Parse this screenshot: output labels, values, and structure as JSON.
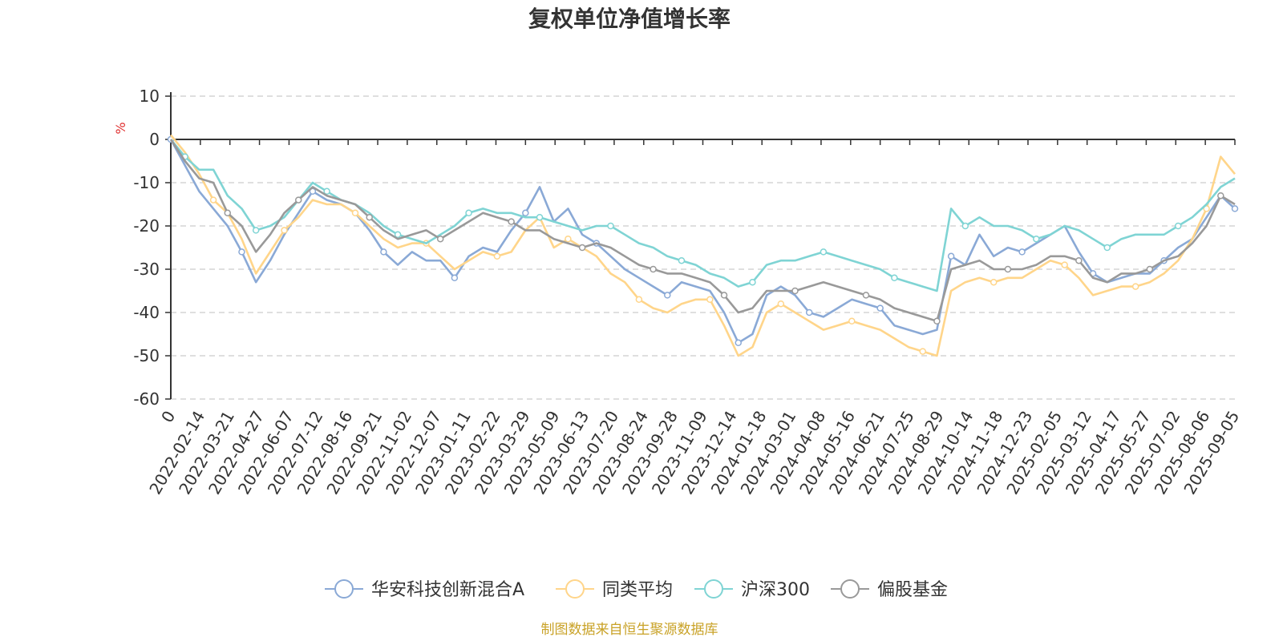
{
  "source_note": "制图数据来自恒生聚源数据库",
  "chart_data": {
    "type": "line",
    "title": "复权单位净值增长率",
    "ylabel": "%",
    "ylim": [
      -60,
      10
    ],
    "yticks": [
      10,
      0,
      -10,
      -20,
      -30,
      -40,
      -50,
      -60
    ],
    "grid": true,
    "legend_position": "bottom",
    "x_tick_labels": [
      "0",
      "2022-02-14",
      "2022-03-21",
      "2022-04-27",
      "2022-06-07",
      "2022-07-12",
      "2022-08-16",
      "2022-09-21",
      "2022-11-02",
      "2022-12-07",
      "2023-01-11",
      "2023-02-22",
      "2023-03-29",
      "2023-05-09",
      "2023-06-13",
      "2023-07-20",
      "2023-08-24",
      "2023-09-28",
      "2023-11-09",
      "2023-12-14",
      "2024-01-18",
      "2024-03-01",
      "2024-04-08",
      "2024-05-16",
      "2024-06-21",
      "2024-07-25",
      "2024-08-29",
      "2024-10-14",
      "2024-11-18",
      "2024-12-23",
      "2025-02-05",
      "2025-03-12",
      "2025-04-17",
      "2025-05-27",
      "2025-07-02",
      "2025-08-06",
      "2025-09-05"
    ],
    "x": [
      "0",
      "2022-01-20",
      "2022-02-14",
      "2022-03-01",
      "2022-03-21",
      "2022-04-08",
      "2022-04-27",
      "2022-05-16",
      "2022-06-07",
      "2022-06-22",
      "2022-07-12",
      "2022-07-26",
      "2022-08-16",
      "2022-09-01",
      "2022-09-21",
      "2022-10-14",
      "2022-11-02",
      "2022-11-18",
      "2022-12-07",
      "2022-12-22",
      "2023-01-11",
      "2023-02-01",
      "2023-02-22",
      "2023-03-10",
      "2023-03-29",
      "2023-04-18",
      "2023-05-09",
      "2023-05-25",
      "2023-06-13",
      "2023-07-03",
      "2023-07-20",
      "2023-08-07",
      "2023-08-24",
      "2023-09-11",
      "2023-09-28",
      "2023-10-20",
      "2023-11-09",
      "2023-11-27",
      "2023-12-14",
      "2023-12-29",
      "2024-01-18",
      "2024-02-06",
      "2024-03-01",
      "2024-03-19",
      "2024-04-08",
      "2024-04-26",
      "2024-05-16",
      "2024-06-04",
      "2024-06-21",
      "2024-07-09",
      "2024-07-25",
      "2024-08-12",
      "2024-08-29",
      "2024-09-20",
      "2024-09-30",
      "2024-10-14",
      "2024-10-31",
      "2024-11-18",
      "2024-12-05",
      "2024-12-23",
      "2025-01-13",
      "2025-02-05",
      "2025-02-21",
      "2025-03-12",
      "2025-03-31",
      "2025-04-07",
      "2025-04-17",
      "2025-05-09",
      "2025-05-27",
      "2025-06-16",
      "2025-07-02",
      "2025-07-18",
      "2025-08-06",
      "2025-08-22",
      "2025-08-28",
      "2025-09-05"
    ],
    "series": [
      {
        "name": "华安科技创新混合A",
        "color": "#8aa9d6",
        "values": [
          0,
          -6,
          -12,
          -16,
          -20,
          -26,
          -33,
          -28,
          -22,
          -17,
          -12,
          -14,
          -15,
          -17,
          -21,
          -26,
          -29,
          -26,
          -28,
          -28,
          -32,
          -27,
          -25,
          -26,
          -21,
          -17,
          -11,
          -19,
          -16,
          -22,
          -24,
          -27,
          -30,
          -32,
          -34,
          -36,
          -33,
          -34,
          -35,
          -40,
          -47,
          -45,
          -36,
          -34,
          -36,
          -40,
          -41,
          -39,
          -37,
          -38,
          -39,
          -43,
          -44,
          -45,
          -44,
          -27,
          -29,
          -22,
          -27,
          -25,
          -26,
          -24,
          -22,
          -20,
          -26,
          -31,
          -33,
          -32,
          -31,
          -31,
          -28,
          -25,
          -23,
          -18,
          -13,
          -16
        ]
      },
      {
        "name": "同类平均",
        "color": "#ffd58a",
        "values": [
          1,
          -3,
          -8,
          -14,
          -17,
          -23,
          -31,
          -26,
          -21,
          -18,
          -14,
          -15,
          -15,
          -17,
          -20,
          -23,
          -25,
          -24,
          -24,
          -27,
          -30,
          -28,
          -26,
          -27,
          -26,
          -21,
          -18,
          -25,
          -23,
          -25,
          -27,
          -31,
          -33,
          -37,
          -39,
          -40,
          -38,
          -37,
          -37,
          -43,
          -50,
          -48,
          -40,
          -38,
          -40,
          -42,
          -44,
          -43,
          -42,
          -43,
          -44,
          -46,
          -48,
          -49,
          -50,
          -35,
          -33,
          -32,
          -33,
          -32,
          -32,
          -30,
          -28,
          -29,
          -32,
          -36,
          -35,
          -34,
          -34,
          -33,
          -31,
          -28,
          -23,
          -16,
          -4,
          -8
        ]
      },
      {
        "name": "沪深300",
        "color": "#7fd4d4",
        "values": [
          0,
          -4,
          -7,
          -7,
          -13,
          -16,
          -21,
          -20,
          -18,
          -14,
          -10,
          -12,
          -14,
          -15,
          -17,
          -20,
          -22,
          -23,
          -24,
          -22,
          -20,
          -17,
          -16,
          -17,
          -17,
          -18,
          -18,
          -19,
          -20,
          -21,
          -20,
          -20,
          -22,
          -24,
          -25,
          -27,
          -28,
          -29,
          -31,
          -32,
          -34,
          -33,
          -29,
          -28,
          -28,
          -27,
          -26,
          -27,
          -28,
          -29,
          -30,
          -32,
          -33,
          -34,
          -35,
          -16,
          -20,
          -18,
          -20,
          -20,
          -21,
          -23,
          -22,
          -20,
          -21,
          -23,
          -25,
          -23,
          -22,
          -22,
          -22,
          -20,
          -18,
          -15,
          -11,
          -9
        ]
      },
      {
        "name": "偏股基金",
        "color": "#999999",
        "values": [
          0,
          -5,
          -9,
          -10,
          -17,
          -20,
          -26,
          -22,
          -17,
          -14,
          -11,
          -13,
          -14,
          -15,
          -18,
          -21,
          -23,
          -22,
          -21,
          -23,
          -21,
          -19,
          -17,
          -18,
          -19,
          -21,
          -21,
          -23,
          -24,
          -25,
          -24,
          -25,
          -27,
          -29,
          -30,
          -31,
          -31,
          -32,
          -33,
          -36,
          -40,
          -39,
          -35,
          -35,
          -35,
          -34,
          -33,
          -34,
          -35,
          -36,
          -37,
          -39,
          -40,
          -41,
          -42,
          -30,
          -29,
          -28,
          -30,
          -30,
          -30,
          -29,
          -27,
          -27,
          -28,
          -32,
          -33,
          -31,
          -31,
          -30,
          -28,
          -27,
          -24,
          -20,
          -13,
          -15
        ]
      }
    ]
  }
}
